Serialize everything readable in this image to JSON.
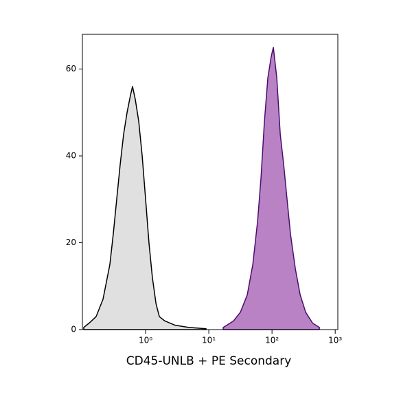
{
  "chart_data": {
    "type": "area",
    "log_x": true,
    "x_label": "CD45-UNLB + PE Secondary",
    "xlim": [
      0.1,
      1100
    ],
    "ylim": [
      0,
      68
    ],
    "xticks": [
      {
        "value": 1,
        "label": "10⁰"
      },
      {
        "value": 10,
        "label": "10¹"
      },
      {
        "value": 100,
        "label": "10²"
      },
      {
        "value": 1000,
        "label": "10³"
      }
    ],
    "yticks": [
      0,
      20,
      40,
      60
    ],
    "series": [
      {
        "color": "#e0e0e0",
        "stroke": "#000000",
        "x": [
          0.105,
          0.128,
          0.165,
          0.212,
          0.272,
          0.308,
          0.349,
          0.396,
          0.449,
          0.509,
          0.577,
          0.621,
          0.687,
          0.778,
          0.883,
          1.0,
          1.13,
          1.28,
          1.46,
          1.65,
          2.01,
          2.93,
          4.84,
          9.05
        ],
        "values": [
          0.5,
          1.5,
          3,
          7,
          15,
          22,
          30,
          38,
          45,
          50,
          54,
          56,
          53,
          48,
          40,
          30,
          20,
          12,
          6,
          3,
          2,
          1,
          0.5,
          0.2
        ]
      },
      {
        "color": "#b982c4",
        "stroke": "#4a0d6e",
        "x": [
          16.9,
          24.6,
          31.6,
          40.6,
          49.7,
          59.2,
          67.0,
          75.9,
          86.0,
          97.5,
          105,
          119,
          135,
          153,
          173,
          196,
          234,
          279,
          341,
          438,
          562
        ],
        "values": [
          0.5,
          2,
          4,
          8,
          15,
          25,
          35,
          48,
          58,
          63,
          65,
          58,
          45,
          38,
          30,
          22,
          14,
          8,
          4,
          1.5,
          0.5
        ]
      }
    ]
  }
}
